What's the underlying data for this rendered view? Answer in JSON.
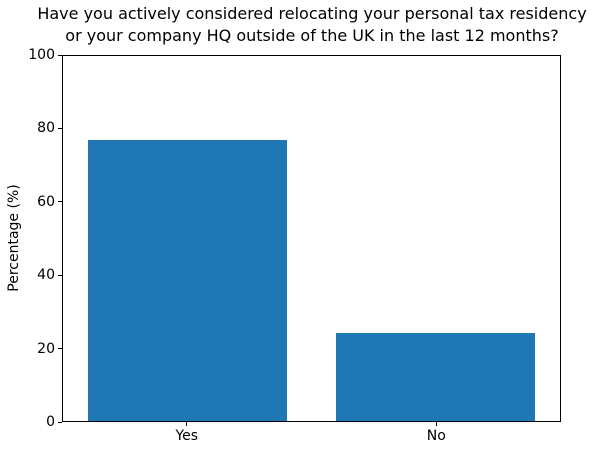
{
  "chart_data": {
    "type": "bar",
    "title": "Have you actively considered relocating your personal tax residency or your company HQ outside of the UK in the last 12 months?",
    "title_lines": [
      "Have you actively considered relocating your personal tax residency",
      "or your company HQ outside of the UK in the last 12 months?"
    ],
    "categories": [
      "Yes",
      "No"
    ],
    "values": [
      77,
      24
    ],
    "xlabel": "",
    "ylabel": "Percentage (%)",
    "ylim": [
      0,
      100
    ],
    "yticks": [
      0,
      20,
      40,
      60,
      80,
      100
    ],
    "bar_color": "#1f77b4",
    "bar_width_fraction": 0.8,
    "grid": false,
    "legend_position": "none",
    "background_color": "#ffffff",
    "text_color": "#000000",
    "spine_color": "#000000"
  }
}
